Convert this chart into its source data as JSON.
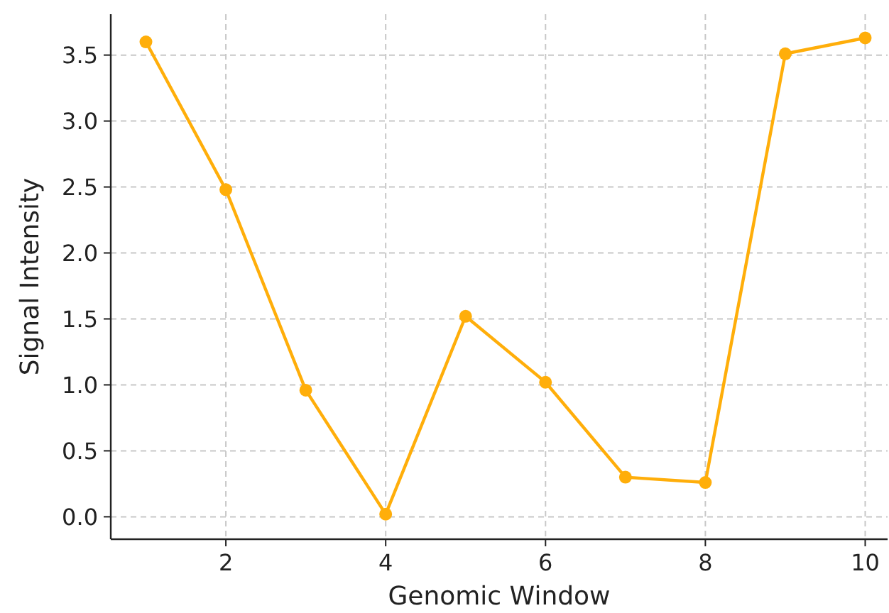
{
  "chart_data": {
    "type": "line",
    "xlabel": "Genomic Window",
    "ylabel": "Signal Intensity",
    "x": [
      1,
      2,
      3,
      4,
      5,
      6,
      7,
      8,
      9,
      10
    ],
    "series": [
      {
        "color": "#ffae0a",
        "values": [
          3.6,
          2.48,
          0.96,
          0.02,
          1.52,
          1.02,
          0.3,
          0.26,
          3.51,
          3.63
        ]
      }
    ],
    "xlim": [
      0.56,
      10.28
    ],
    "ylim": [
      -0.17,
      3.81
    ],
    "xticks": [
      2,
      4,
      6,
      8,
      10
    ],
    "yticks": [
      {
        "value": 0,
        "label": "0.0"
      },
      0.5,
      {
        "value": 1,
        "label": "1.0"
      },
      1.5,
      {
        "value": 2,
        "label": "2.0"
      },
      2.5,
      {
        "value": 3,
        "label": "3.0"
      },
      3.5
    ],
    "grid": true,
    "marker": "circle",
    "line_style": "solid"
  }
}
